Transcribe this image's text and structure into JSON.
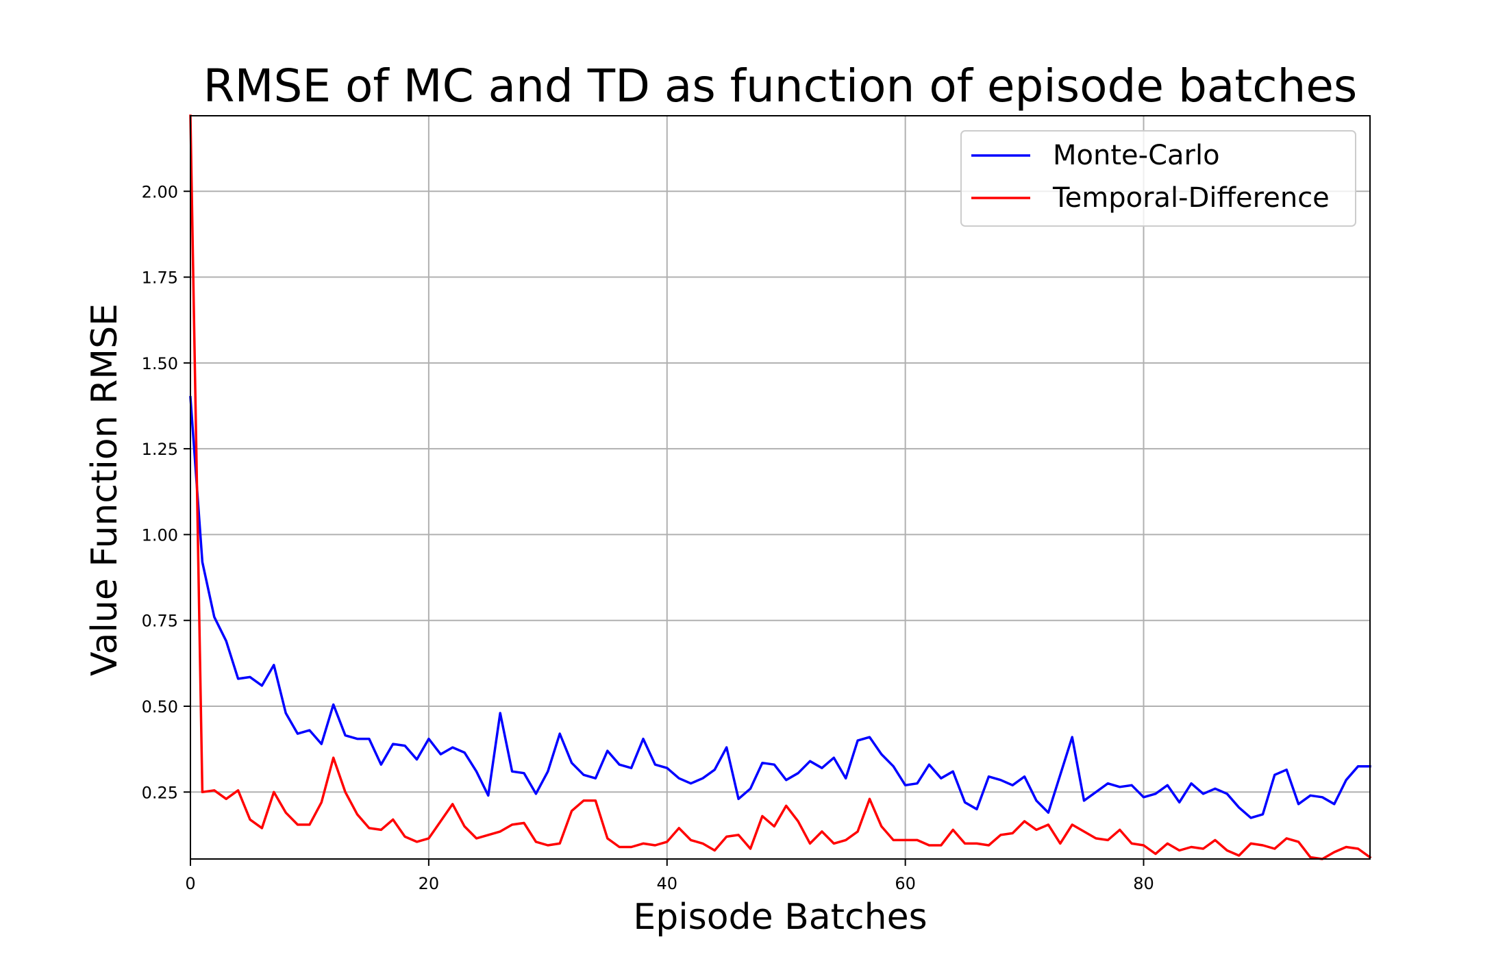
{
  "chart_data": {
    "type": "line",
    "title": "RMSE of MC and TD as function of episode batches",
    "xlabel": "Episode Batches",
    "ylabel": "Value Function RMSE",
    "xlim": [
      0,
      99
    ],
    "ylim": [
      0.055,
      2.22
    ],
    "grid": true,
    "legend_position": "top-right",
    "x_ticks": [
      0,
      20,
      40,
      60,
      80
    ],
    "x_tick_labels": [
      "0",
      "20",
      "40",
      "60",
      "80"
    ],
    "y_ticks": [
      0.25,
      0.5,
      0.75,
      1.0,
      1.25,
      1.5,
      1.75,
      2.0
    ],
    "y_tick_labels": [
      "0.25",
      "0.50",
      "0.75",
      "1.00",
      "1.25",
      "1.50",
      "1.75",
      "2.00"
    ],
    "x": [
      0,
      1,
      2,
      3,
      4,
      5,
      6,
      7,
      8,
      9,
      10,
      11,
      12,
      13,
      14,
      15,
      16,
      17,
      18,
      19,
      20,
      21,
      22,
      23,
      24,
      25,
      26,
      27,
      28,
      29,
      30,
      31,
      32,
      33,
      34,
      35,
      36,
      37,
      38,
      39,
      40,
      41,
      42,
      43,
      44,
      45,
      46,
      47,
      48,
      49,
      50,
      51,
      52,
      53,
      54,
      55,
      56,
      57,
      58,
      59,
      60,
      61,
      62,
      63,
      64,
      65,
      66,
      67,
      68,
      69,
      70,
      71,
      72,
      73,
      74,
      75,
      76,
      77,
      78,
      79,
      80,
      81,
      82,
      83,
      84,
      85,
      86,
      87,
      88,
      89,
      90,
      91,
      92,
      93,
      94,
      95,
      96,
      97,
      98,
      99
    ],
    "series": [
      {
        "name": "Monte-Carlo",
        "color": "#0000ff",
        "values": [
          1.4,
          0.92,
          0.76,
          0.69,
          0.58,
          0.585,
          0.56,
          0.62,
          0.48,
          0.42,
          0.43,
          0.39,
          0.505,
          0.415,
          0.405,
          0.405,
          0.33,
          0.39,
          0.385,
          0.345,
          0.405,
          0.36,
          0.38,
          0.365,
          0.31,
          0.24,
          0.48,
          0.31,
          0.305,
          0.245,
          0.31,
          0.42,
          0.335,
          0.3,
          0.29,
          0.37,
          0.33,
          0.32,
          0.405,
          0.33,
          0.32,
          0.29,
          0.275,
          0.29,
          0.315,
          0.38,
          0.23,
          0.26,
          0.335,
          0.33,
          0.285,
          0.305,
          0.34,
          0.32,
          0.35,
          0.29,
          0.4,
          0.41,
          0.36,
          0.325,
          0.27,
          0.275,
          0.33,
          0.29,
          0.31,
          0.22,
          0.2,
          0.295,
          0.285,
          0.27,
          0.295,
          0.225,
          0.19,
          0.3,
          0.41,
          0.225,
          0.25,
          0.275,
          0.265,
          0.27,
          0.235,
          0.245,
          0.27,
          0.22,
          0.275,
          0.245,
          0.26,
          0.245,
          0.205,
          0.175,
          0.185,
          0.3,
          0.315,
          0.215,
          0.24,
          0.235,
          0.215,
          0.285,
          0.325,
          0.325
        ]
      },
      {
        "name": "Temporal-Difference",
        "color": "#ff0000",
        "values": [
          2.22,
          0.25,
          0.255,
          0.23,
          0.255,
          0.17,
          0.145,
          0.25,
          0.19,
          0.155,
          0.155,
          0.22,
          0.35,
          0.25,
          0.185,
          0.145,
          0.14,
          0.17,
          0.12,
          0.105,
          0.115,
          0.165,
          0.215,
          0.15,
          0.115,
          0.125,
          0.135,
          0.155,
          0.16,
          0.105,
          0.095,
          0.1,
          0.195,
          0.225,
          0.225,
          0.115,
          0.09,
          0.09,
          0.1,
          0.095,
          0.105,
          0.145,
          0.11,
          0.1,
          0.08,
          0.12,
          0.125,
          0.085,
          0.18,
          0.15,
          0.21,
          0.165,
          0.1,
          0.135,
          0.1,
          0.11,
          0.135,
          0.23,
          0.15,
          0.11,
          0.11,
          0.11,
          0.095,
          0.095,
          0.14,
          0.1,
          0.1,
          0.095,
          0.125,
          0.13,
          0.165,
          0.14,
          0.155,
          0.1,
          0.155,
          0.135,
          0.115,
          0.11,
          0.14,
          0.1,
          0.095,
          0.07,
          0.1,
          0.08,
          0.09,
          0.085,
          0.11,
          0.08,
          0.065,
          0.1,
          0.095,
          0.085,
          0.115,
          0.105,
          0.06,
          0.055,
          0.075,
          0.09,
          0.085,
          0.06
        ]
      }
    ]
  }
}
